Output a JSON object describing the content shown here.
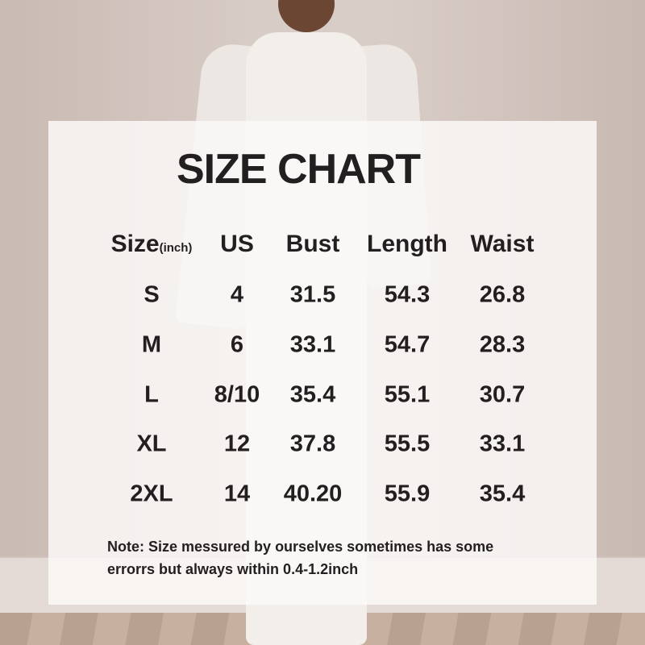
{
  "title": "SIZE CHART",
  "headers": {
    "size": "Size",
    "size_unit": "(inch)",
    "us": "US",
    "bust": "Bust",
    "length": "Length",
    "waist": "Waist"
  },
  "rows": [
    {
      "size": "S",
      "us": "4",
      "bust": "31.5",
      "length": "54.3",
      "waist": "26.8"
    },
    {
      "size": "M",
      "us": "6",
      "bust": "33.1",
      "length": "54.7",
      "waist": "28.3"
    },
    {
      "size": "L",
      "us": "8/10",
      "bust": "35.4",
      "length": "55.1",
      "waist": "30.7"
    },
    {
      "size": "XL",
      "us": "12",
      "bust": "37.8",
      "length": "55.5",
      "waist": "33.1"
    },
    {
      "size": "2XL",
      "us": "14",
      "bust": "40.20",
      "length": "55.9",
      "waist": "35.4"
    }
  ],
  "note_line1": "Note:  Size messured by ourselves sometimes has some",
  "note_line2": "errorrs but always within 0.4-1.2inch"
}
